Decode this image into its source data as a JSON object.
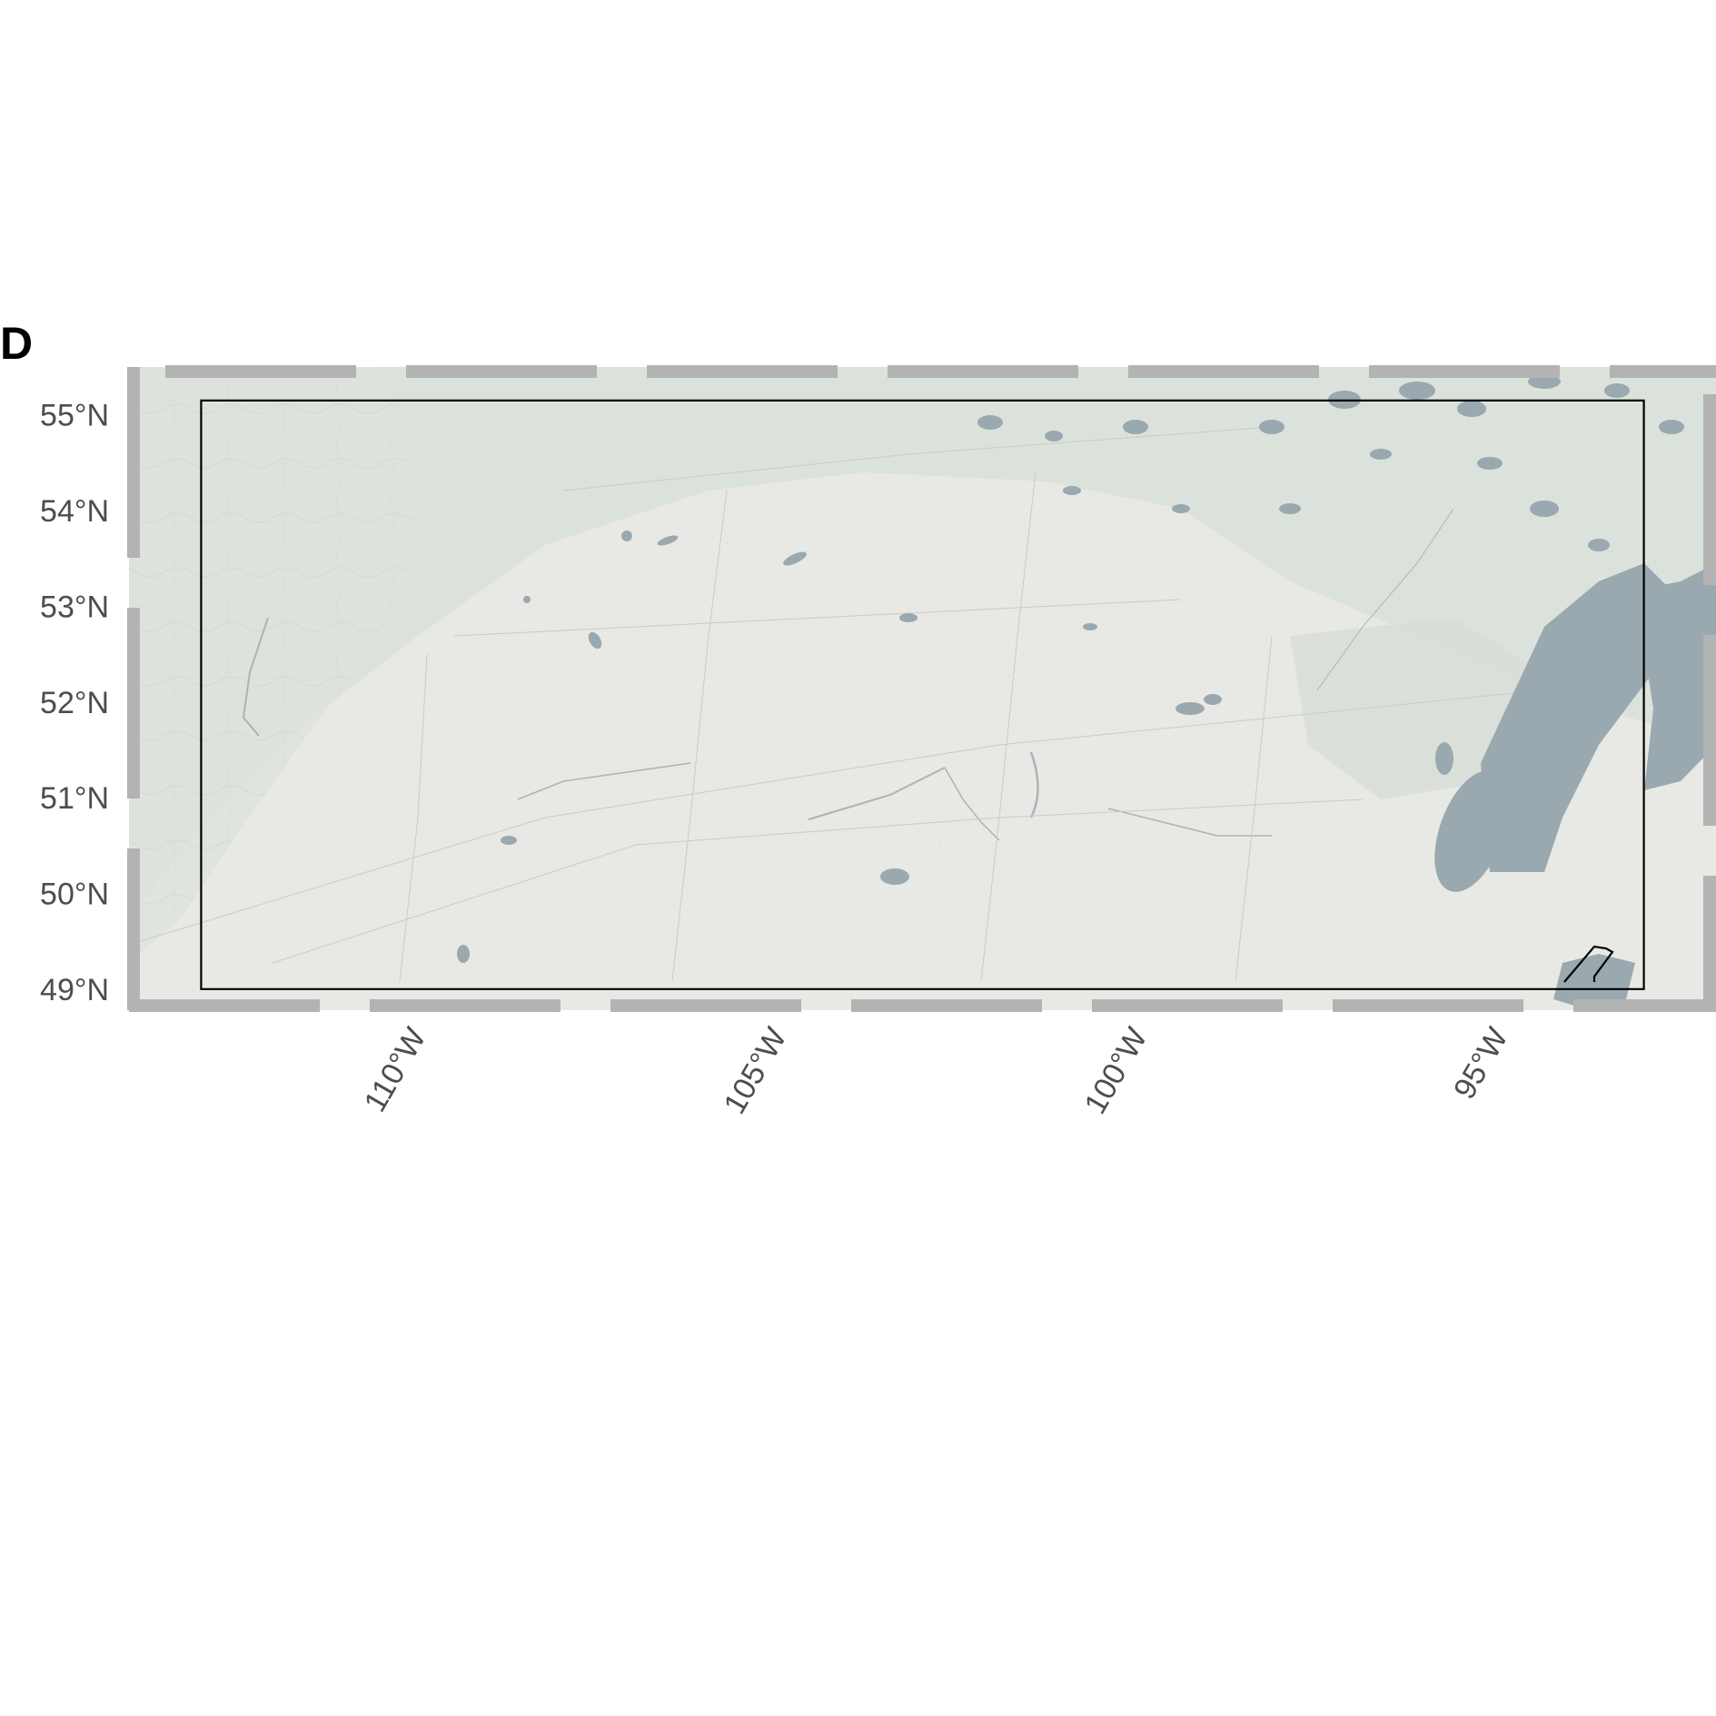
{
  "panel": {
    "label": "D"
  },
  "map": {
    "basemap_colors": {
      "land": "#e8e9e4",
      "forest": "#d9e1d9",
      "water": "#9aa8b0",
      "frame": "#b3b3b3",
      "outline": "#000000"
    },
    "lat_ticks": [
      {
        "value": 55,
        "label": "55°N"
      },
      {
        "value": 54,
        "label": "54°N"
      },
      {
        "value": 53,
        "label": "53°N"
      },
      {
        "value": 52,
        "label": "52°N"
      },
      {
        "value": 51,
        "label": "51°N"
      },
      {
        "value": 50,
        "label": "50°N"
      },
      {
        "value": 49,
        "label": "49°N"
      }
    ],
    "lon_ticks": [
      {
        "value": -110,
        "label": "110°W"
      },
      {
        "value": -105,
        "label": "105°W"
      },
      {
        "value": -100,
        "label": "100°W"
      },
      {
        "value": -95,
        "label": "95°W"
      }
    ],
    "lon_range": [
      -114.0,
      -92.0
    ],
    "lat_range": [
      48.78,
      55.5
    ],
    "study_area": {
      "lon_min": -113.0,
      "lon_max": -93.0,
      "lat_min": 49.0,
      "lat_max": 55.15
    }
  }
}
